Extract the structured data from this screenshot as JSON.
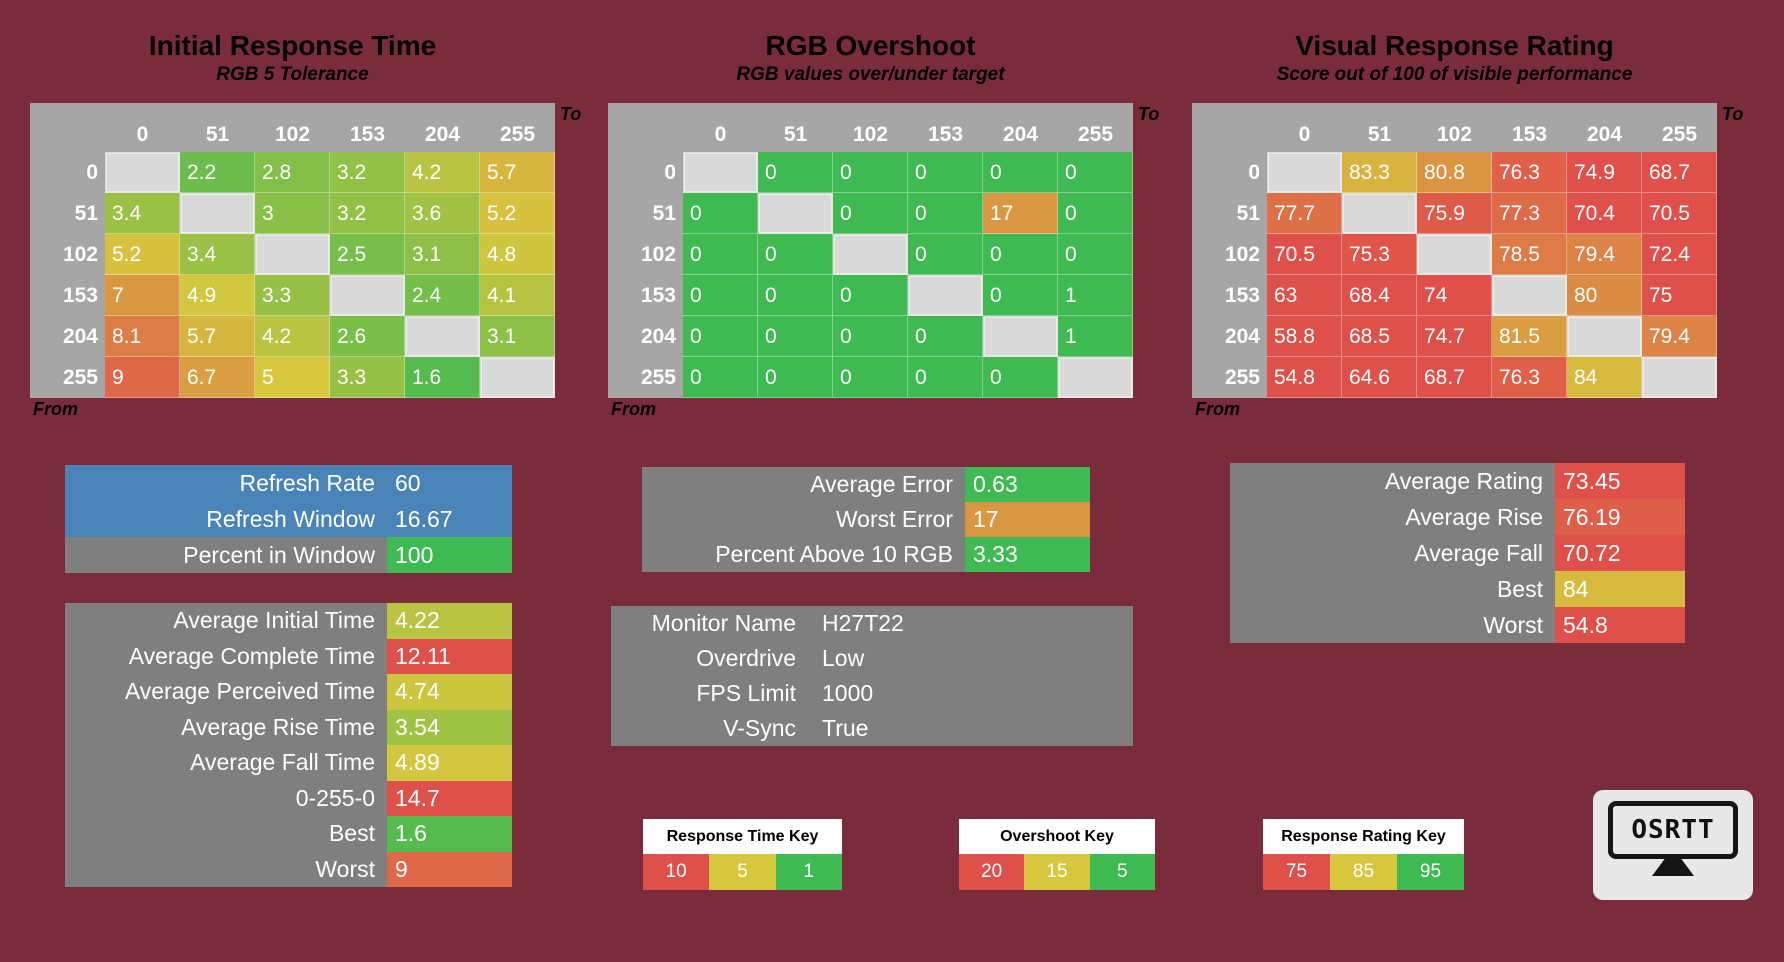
{
  "app": {
    "name": "OSRTT results screen",
    "background_color": "#7B2C3C"
  },
  "colors": {
    "table_header_bg": "#A6A6A6",
    "diagonal_cell_bg": "#D9D9D9",
    "panel_gray": "#7F7F7F",
    "panel_blue": "#4A83B8",
    "green": "#3FB951",
    "yellow": "#D6C73E",
    "red": "#E0504A",
    "key_header_bg": "#FFFFFF"
  },
  "axis_labels": {
    "to": "To",
    "from": "From"
  },
  "colormaps": {
    "time": {
      "stops": [
        1,
        5,
        10
      ],
      "colors": [
        "#3FB951",
        "#D6C73E",
        "#E0504A"
      ]
    },
    "overshoot": {
      "stops": [
        5,
        15,
        20
      ],
      "colors": [
        "#3FB951",
        "#D6C73E",
        "#E0504A"
      ]
    },
    "rating": {
      "stops": [
        75,
        85,
        95
      ],
      "colors": [
        "#E0504A",
        "#D6C73E",
        "#3FB951"
      ]
    }
  },
  "tables": [
    {
      "title": "Initial Response Time",
      "subtitle": "RGB 5 Tolerance",
      "colormap": "time",
      "columns": [
        "0",
        "51",
        "102",
        "153",
        "204",
        "255"
      ],
      "rows": [
        "0",
        "51",
        "102",
        "153",
        "204",
        "255"
      ],
      "cells": [
        [
          "",
          "2.2",
          "2.8",
          "3.2",
          "4.2",
          "5.7"
        ],
        [
          "3.4",
          "",
          "3",
          "3.2",
          "3.6",
          "5.2"
        ],
        [
          "5.2",
          "3.4",
          "",
          "2.5",
          "3.1",
          "4.8"
        ],
        [
          "7",
          "4.9",
          "3.3",
          "",
          "2.4",
          "4.1"
        ],
        [
          "8.1",
          "5.7",
          "4.2",
          "2.6",
          "",
          "3.1"
        ],
        [
          "9",
          "6.7",
          "5",
          "3.3",
          "1.6",
          ""
        ]
      ]
    },
    {
      "title": "RGB Overshoot",
      "subtitle": "RGB values over/under target",
      "colormap": "overshoot",
      "columns": [
        "0",
        "51",
        "102",
        "153",
        "204",
        "255"
      ],
      "rows": [
        "0",
        "51",
        "102",
        "153",
        "204",
        "255"
      ],
      "cells": [
        [
          "",
          "0",
          "0",
          "0",
          "0",
          "0"
        ],
        [
          "0",
          "",
          "0",
          "0",
          "17",
          "0"
        ],
        [
          "0",
          "0",
          "",
          "0",
          "0",
          "0"
        ],
        [
          "0",
          "0",
          "0",
          "",
          "0",
          "1"
        ],
        [
          "0",
          "0",
          "0",
          "0",
          "",
          "1"
        ],
        [
          "0",
          "0",
          "0",
          "0",
          "0",
          ""
        ]
      ]
    },
    {
      "title": "Visual Response Rating",
      "subtitle": "Score out of 100 of visible performance",
      "colormap": "rating",
      "columns": [
        "0",
        "51",
        "102",
        "153",
        "204",
        "255"
      ],
      "rows": [
        "0",
        "51",
        "102",
        "153",
        "204",
        "255"
      ],
      "cells": [
        [
          "",
          "83.3",
          "80.8",
          "76.3",
          "74.9",
          "68.7"
        ],
        [
          "77.7",
          "",
          "75.9",
          "77.3",
          "70.4",
          "70.5"
        ],
        [
          "70.5",
          "75.3",
          "",
          "78.5",
          "79.4",
          "72.4"
        ],
        [
          "63",
          "68.4",
          "74",
          "",
          "80",
          "75"
        ],
        [
          "58.8",
          "68.5",
          "74.7",
          "81.5",
          "",
          "79.4"
        ],
        [
          "54.8",
          "64.6",
          "68.7",
          "76.3",
          "84",
          ""
        ]
      ]
    }
  ],
  "panels": [
    {
      "id": "refresh-info",
      "rows": [
        {
          "label": "Refresh Rate",
          "value": "60",
          "row_bg": "#4A83B8"
        },
        {
          "label": "Refresh Window",
          "value": "16.67",
          "row_bg": "#4A83B8"
        },
        {
          "label": "Percent in Window",
          "value": "100",
          "row_bg": "#7F7F7F",
          "value_bg": "#3FB951"
        }
      ]
    },
    {
      "id": "response-time-summary",
      "rows": [
        {
          "label": "Average Initial Time",
          "value": "4.22",
          "cmap": "time"
        },
        {
          "label": "Average Complete Time",
          "value": "12.11",
          "cmap": "time"
        },
        {
          "label": "Average Perceived Time",
          "value": "4.74",
          "cmap": "time"
        },
        {
          "label": "Average Rise Time",
          "value": "3.54",
          "cmap": "time"
        },
        {
          "label": "Average Fall Time",
          "value": "4.89",
          "cmap": "time"
        },
        {
          "label": "0-255-0",
          "value": "14.7",
          "cmap": "time"
        },
        {
          "label": "Best",
          "value": "1.6",
          "cmap": "time"
        },
        {
          "label": "Worst",
          "value": "9",
          "cmap": "time"
        }
      ]
    },
    {
      "id": "overshoot-summary",
      "rows": [
        {
          "label": "Average Error",
          "value": "0.63",
          "cmap": "overshoot"
        },
        {
          "label": "Worst Error",
          "value": "17",
          "cmap": "overshoot"
        },
        {
          "label": "Percent Above 10 RGB",
          "value": "3.33",
          "cmap": "overshoot"
        }
      ]
    },
    {
      "id": "monitor-info",
      "rows": [
        {
          "label": "Monitor Name",
          "value": "H27T22"
        },
        {
          "label": "Overdrive",
          "value": "Low"
        },
        {
          "label": "FPS Limit",
          "value": "1000"
        },
        {
          "label": "V-Sync",
          "value": "True"
        }
      ]
    },
    {
      "id": "rating-summary",
      "rows": [
        {
          "label": "Average Rating",
          "value": "73.45",
          "cmap": "rating"
        },
        {
          "label": "Average Rise",
          "value": "76.19",
          "cmap": "rating"
        },
        {
          "label": "Average Fall",
          "value": "70.72",
          "cmap": "rating"
        },
        {
          "label": "Best",
          "value": "84",
          "cmap": "rating"
        },
        {
          "label": "Worst",
          "value": "54.8",
          "cmap": "rating"
        }
      ]
    }
  ],
  "keys": [
    {
      "title": "Response Time Key",
      "cells": [
        {
          "value": "10",
          "color": "#E0504A"
        },
        {
          "value": "5",
          "color": "#D6C73E"
        },
        {
          "value": "1",
          "color": "#3FB951"
        }
      ]
    },
    {
      "title": "Overshoot Key",
      "cells": [
        {
          "value": "20",
          "color": "#E0504A"
        },
        {
          "value": "15",
          "color": "#D6C73E"
        },
        {
          "value": "5",
          "color": "#3FB951"
        }
      ]
    },
    {
      "title": "Response Rating Key",
      "cells": [
        {
          "value": "75",
          "color": "#E0504A"
        },
        {
          "value": "85",
          "color": "#D6C73E"
        },
        {
          "value": "95",
          "color": "#3FB951"
        }
      ]
    }
  ],
  "logo": {
    "text": "OSRTT"
  }
}
